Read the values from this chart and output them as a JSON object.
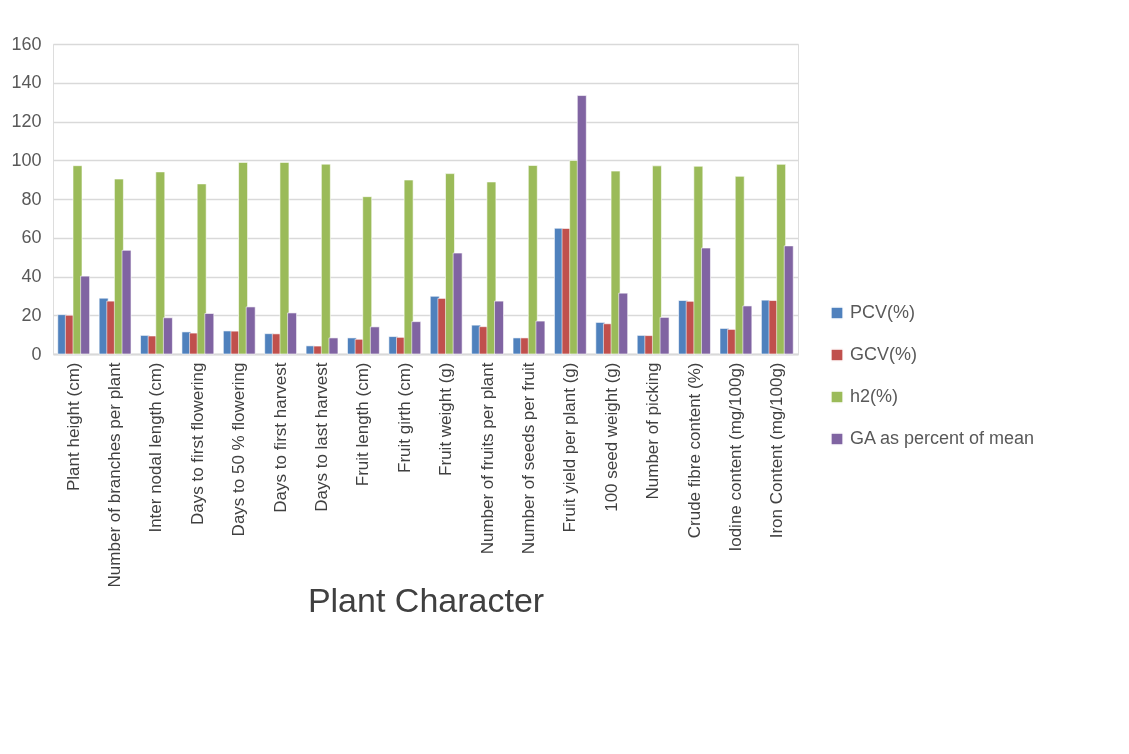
{
  "chart_data": {
    "type": "bar",
    "xlabel": "Plant Character",
    "categories": [
      "Plant height (cm)",
      "Number of branches per plant",
      "Inter nodal length (cm)",
      "Days to first flowering",
      "Days to 50 % flowering",
      "Days to first harvest",
      "Days to last harvest",
      "Fruit length (cm)",
      "Fruit girth (cm)",
      "Fruit weight (g)",
      "Number of fruits per plant",
      "Number of seeds per fruit",
      "Fruit yield per plant (g)",
      "100 seed weight (g)",
      "Number of picking",
      "Crude fibre content (%)",
      "Iodine content (mg/100g)",
      "Iron Content (mg/100g)"
    ],
    "series": [
      {
        "name": "PCV(%)",
        "color": "#4f81bd",
        "values": [
          20.3,
          28.8,
          9.6,
          11.4,
          11.9,
          10.5,
          4.2,
          8.3,
          9.0,
          29.8,
          14.9,
          8.3,
          64.9,
          16.3,
          9.6,
          27.6,
          13.2,
          27.8
        ]
      },
      {
        "name": "GCV(%)",
        "color": "#c0504d",
        "values": [
          20.0,
          27.3,
          9.3,
          10.8,
          11.8,
          10.4,
          4.1,
          7.6,
          8.6,
          28.7,
          14.1,
          8.3,
          64.8,
          15.6,
          9.5,
          27.2,
          12.7,
          27.6
        ]
      },
      {
        "name": "h2(%)",
        "color": "#9bbb59",
        "values": [
          97.2,
          90.3,
          94.0,
          87.8,
          98.9,
          98.9,
          98.0,
          81.2,
          89.8,
          93.1,
          88.8,
          97.3,
          99.9,
          94.4,
          97.1,
          96.9,
          91.7,
          97.9
        ]
      },
      {
        "name": "GA as percent of mean",
        "color": "#8064a2",
        "values": [
          40.2,
          53.5,
          18.7,
          20.9,
          24.3,
          21.2,
          8.3,
          14.0,
          16.7,
          52.1,
          27.3,
          17.0,
          133.4,
          31.4,
          18.9,
          54.7,
          24.8,
          55.8
        ]
      }
    ],
    "ylim": [
      0,
      160
    ],
    "yticks": [
      0,
      20,
      40,
      60,
      80,
      100,
      120,
      140,
      160
    ],
    "grid": "y",
    "legend": "right"
  }
}
